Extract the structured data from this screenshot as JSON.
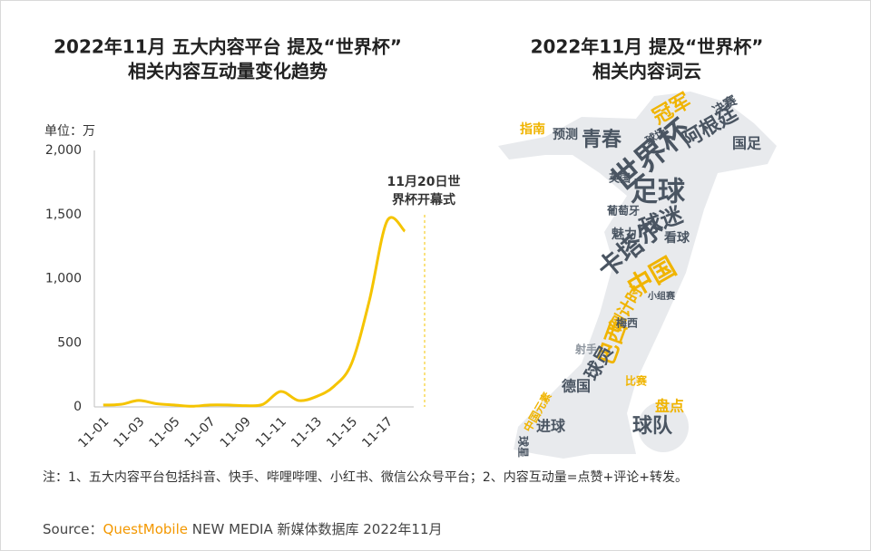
{
  "chart_data": [
    {
      "type": "line",
      "title": [
        "2022年11月 五大内容平台 提及“世界杯”",
        "相关内容互动量变化趋势"
      ],
      "unit": "单位：万",
      "categories": [
        "11-01",
        null,
        "11-03",
        null,
        "11-05",
        null,
        "11-07",
        null,
        "11-09",
        null,
        "11-11",
        null,
        "11-13",
        null,
        "11-15",
        null,
        "11-17",
        null
      ],
      "values": [
        15,
        20,
        50,
        25,
        15,
        5,
        15,
        15,
        10,
        20,
        120,
        50,
        80,
        160,
        340,
        830,
        1450,
        1370
      ],
      "color": "#f5c400",
      "ylim": [
        0,
        2000
      ],
      "yticks": [
        0,
        500,
        {
          "value": 1000,
          "label": "1,000"
        },
        {
          "value": 1500,
          "label": "1,500"
        },
        {
          "value": 2000,
          "label": "2,000"
        }
      ],
      "grid": false,
      "annotation": [
        "11月20日世",
        "界杯开幕式"
      ]
    },
    {
      "type": "wordcloud",
      "title": [
        "2022年11月 提及“世界杯”",
        "相关内容词云"
      ],
      "words": [
        "世界杯",
        "阿根廷",
        "冠军",
        "青春",
        "足球",
        "球迷",
        "卡塔尔",
        "中国",
        "倒计时",
        "巴西",
        "球员",
        "德国",
        "进球",
        "球队",
        "盘点",
        "预测",
        "指南",
        "魅力",
        "球场",
        "国足",
        "决赛",
        "看球",
        "葡萄牙",
        "比赛",
        "球星",
        "梅西",
        "小组赛",
        "中国元素",
        "英国",
        "射手"
      ]
    }
  ],
  "note": "注：1、五大内容平台包括抖音、快手、哔哩哔哩、小红书、微信公众号平台；2、内容互动量=点赞+评论+转发。",
  "source": {
    "label": "Source：",
    "brand": "QuestMobile",
    "text": "NEW MEDIA 新媒体数据库 2022年11月"
  }
}
